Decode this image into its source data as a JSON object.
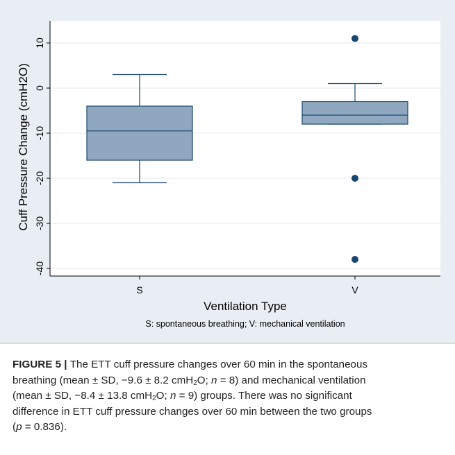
{
  "chart_data": {
    "type": "boxplot",
    "ylabel": "Cuff Pressure Change (cmH2O)",
    "xlabel": "Ventilation Type",
    "note": "S: spontaneous breathing; V: mechanical ventilation",
    "ylim": [
      -42,
      12
    ],
    "yticks": [
      10,
      0,
      -10,
      -20,
      -30,
      -40
    ],
    "ytick_labels": [
      "10",
      "0",
      "-10",
      "-20",
      "-30",
      "-40"
    ],
    "grid": true,
    "categories": [
      "S",
      "V"
    ],
    "boxes": [
      {
        "category": "S",
        "whisker_low": -21,
        "q1": -16,
        "median": -9.5,
        "q3": -4,
        "whisker_high": 3,
        "outliers": []
      },
      {
        "category": "V",
        "whisker_low": -8,
        "q1": -8,
        "median": -6,
        "q3": -3,
        "whisker_high": 1,
        "outliers": [
          11,
          -20,
          -38
        ]
      }
    ],
    "colors": {
      "box_fill": "#90a8bf",
      "box_stroke": "#1a476f",
      "outlier": "#1a476f",
      "panel_bg": "#e8eef4",
      "plot_bg": "#ffffff",
      "grid": "#e4eaf0"
    }
  },
  "caption": {
    "label": "FIGURE 5 |",
    "lines": [
      {
        "pre": "The ETT cuff pressure changes over 60 min in the spontaneous"
      },
      {
        "pre": "breathing (mean ± SD, −9.6 ± 8.2 cmH",
        "sub": "2",
        "post": "O; ",
        "italic": "n",
        "end": " = 8) and mechanical ventilation"
      },
      {
        "pre": "(mean ± SD, −8.4 ± 13.8 cmH",
        "sub": "2",
        "post": "O; ",
        "italic": "n",
        "end": " = 9) groups. There was no significant"
      },
      {
        "pre": "difference in ETT cuff pressure changes over 60 min between the two groups"
      },
      {
        "pre": "(",
        "italic": "p",
        "end": " = 0.836)."
      }
    ]
  }
}
